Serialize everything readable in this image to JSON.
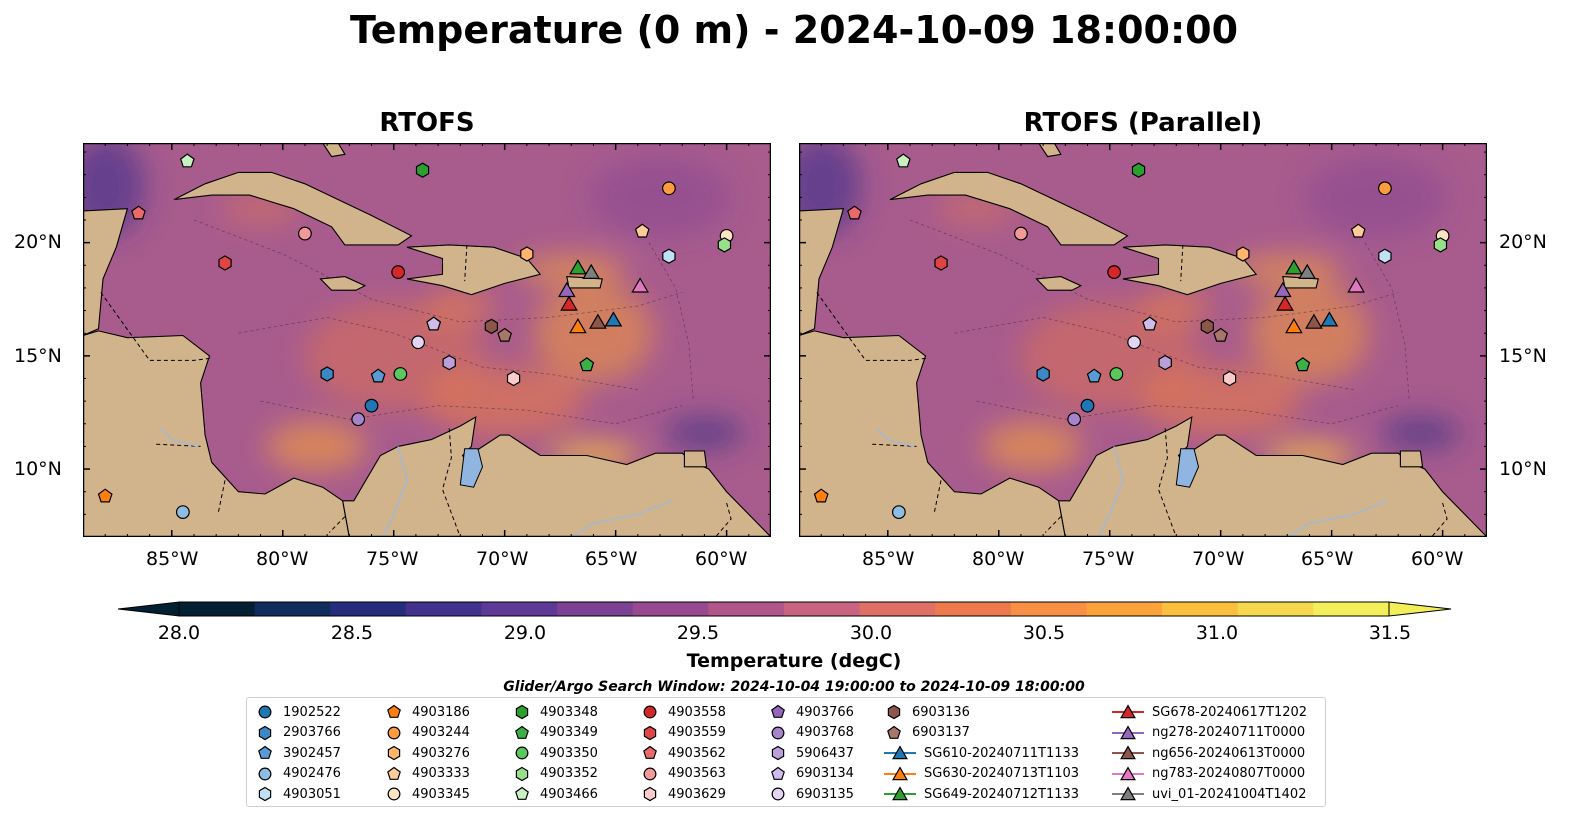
{
  "title": "Temperature (0 m) - 2024-10-09 18:00:00",
  "panels": [
    {
      "title": "RTOFS"
    },
    {
      "title": "RTOFS (Parallel)"
    }
  ],
  "map": {
    "lon_range": [
      -89,
      -58
    ],
    "lat_range": [
      7,
      24.4
    ],
    "lon_ticks": [
      "85°W",
      "80°W",
      "75°W",
      "70°W",
      "65°W",
      "60°W"
    ],
    "lat_ticks": [
      "20°N",
      "15°N",
      "10°N"
    ],
    "land_color": "#d2b48c",
    "lake_color": "#8fb5e0",
    "ocean_color": "#a85c8e"
  },
  "colorbar": {
    "ticks": [
      "28.0",
      "28.5",
      "29.0",
      "29.5",
      "30.0",
      "30.5",
      "31.0",
      "31.5"
    ],
    "label": "Temperature (degC)",
    "colors": [
      "#032033",
      "#0f2d5c",
      "#262e7c",
      "#43328d",
      "#5e3a96",
      "#7b4294",
      "#984a90",
      "#b1568a",
      "#c86482",
      "#de7066",
      "#ee7a4c",
      "#f78f44",
      "#fca33b",
      "#fbbf3e",
      "#f6d84e",
      "#f2ef5a"
    ]
  },
  "search_window": "Glider/Argo Search Window: 2024-10-04 19:00:00 to 2024-10-09 18:00:00",
  "legend": {
    "columns": [
      [
        {
          "label": "1902522",
          "marker": "circle",
          "color": "#1f77b4"
        },
        {
          "label": "2903766",
          "marker": "hexagon",
          "color": "#3b88c4"
        },
        {
          "label": "3902457",
          "marker": "pentagon",
          "color": "#5a9bd5"
        },
        {
          "label": "4902476",
          "marker": "circle",
          "color": "#8dbde3"
        },
        {
          "label": "4903051",
          "marker": "hexagon",
          "color": "#c2e0f5"
        }
      ],
      [
        {
          "label": "4903186",
          "marker": "pentagon",
          "color": "#ff7f0e"
        },
        {
          "label": "4903244",
          "marker": "circle",
          "color": "#ff9b3f"
        },
        {
          "label": "4903276",
          "marker": "hexagon",
          "color": "#ffb56e"
        },
        {
          "label": "4903333",
          "marker": "pentagon",
          "color": "#ffcc99"
        },
        {
          "label": "4903345",
          "marker": "circle",
          "color": "#ffe2c4"
        }
      ],
      [
        {
          "label": "4903348",
          "marker": "hexagon",
          "color": "#2ca02c"
        },
        {
          "label": "4903349",
          "marker": "pentagon",
          "color": "#3cb043"
        },
        {
          "label": "4903350",
          "marker": "circle",
          "color": "#5cc85c"
        },
        {
          "label": "4903352",
          "marker": "hexagon",
          "color": "#98df8a"
        },
        {
          "label": "4903466",
          "marker": "pentagon",
          "color": "#c8f0c0"
        }
      ],
      [
        {
          "label": "4903558",
          "marker": "circle",
          "color": "#d62728"
        },
        {
          "label": "4903559",
          "marker": "hexagon",
          "color": "#e04444"
        },
        {
          "label": "4903562",
          "marker": "pentagon",
          "color": "#e86a6a"
        },
        {
          "label": "4903563",
          "marker": "circle",
          "color": "#f29a9a"
        },
        {
          "label": "4903629",
          "marker": "hexagon",
          "color": "#fbcaca"
        }
      ],
      [
        {
          "label": "4903766",
          "marker": "pentagon",
          "color": "#9467bd"
        },
        {
          "label": "4903768",
          "marker": "circle",
          "color": "#a783cc"
        },
        {
          "label": "5906437",
          "marker": "hexagon",
          "color": "#bb9fdb"
        },
        {
          "label": "6903134",
          "marker": "pentagon",
          "color": "#d0bcea"
        },
        {
          "label": "6903135",
          "marker": "circle",
          "color": "#e3d6f5"
        }
      ],
      [
        {
          "label": "6903136",
          "marker": "hexagon",
          "color": "#8c564b"
        },
        {
          "label": "6903137",
          "marker": "pentagon",
          "color": "#a9766b"
        },
        {
          "label": "SG610-20240711T1133",
          "marker": "triangle-line",
          "color": "#1f77b4"
        },
        {
          "label": "SG630-20240713T1103",
          "marker": "triangle-line",
          "color": "#ff7f0e"
        },
        {
          "label": "SG649-20240712T1133",
          "marker": "triangle-line",
          "color": "#2ca02c"
        }
      ],
      [
        {
          "label": "SG678-20240617T1202",
          "marker": "triangle-line",
          "color": "#d62728"
        },
        {
          "label": "ng278-20240711T0000",
          "marker": "triangle-line",
          "color": "#9467bd"
        },
        {
          "label": "ng656-20240613T0000",
          "marker": "triangle-line",
          "color": "#8c564b"
        },
        {
          "label": "ng783-20240807T0000",
          "marker": "triangle-line",
          "color": "#e377c2"
        },
        {
          "label": "uvi_01-20241004T1402",
          "marker": "triangle-line",
          "color": "#7f7f7f"
        }
      ]
    ]
  },
  "floats": [
    {
      "id": "1902522",
      "lon": -76.0,
      "lat": 12.8
    },
    {
      "id": "2903766",
      "lon": -78.0,
      "lat": 14.2
    },
    {
      "id": "3902457",
      "lon": -75.7,
      "lat": 14.1
    },
    {
      "id": "4902476",
      "lon": -84.5,
      "lat": 8.1
    },
    {
      "id": "4903051",
      "lon": -62.6,
      "lat": 19.4
    },
    {
      "id": "4903186",
      "lon": -88.0,
      "lat": 8.8
    },
    {
      "id": "4903244",
      "lon": -62.6,
      "lat": 22.4
    },
    {
      "id": "4903276",
      "lon": -69.0,
      "lat": 19.5
    },
    {
      "id": "4903333",
      "lon": -63.8,
      "lat": 20.5
    },
    {
      "id": "4903345",
      "lon": -60.0,
      "lat": 20.3
    },
    {
      "id": "4903348",
      "lon": -73.7,
      "lat": 23.2
    },
    {
      "id": "4903349",
      "lon": -66.3,
      "lat": 14.6
    },
    {
      "id": "4903350",
      "lon": -74.7,
      "lat": 14.2
    },
    {
      "id": "4903352",
      "lon": -60.1,
      "lat": 19.9
    },
    {
      "id": "4903466",
      "lon": -84.3,
      "lat": 23.6
    },
    {
      "id": "4903558",
      "lon": -74.8,
      "lat": 18.7
    },
    {
      "id": "4903559",
      "lon": -82.6,
      "lat": 19.1
    },
    {
      "id": "4903562",
      "lon": -86.5,
      "lat": 21.3
    },
    {
      "id": "4903563",
      "lon": -79.0,
      "lat": 20.4
    },
    {
      "id": "4903629",
      "lon": -69.6,
      "lat": 14.0
    },
    {
      "id": "4903766",
      "lon": -73.2,
      "lat": 16.4
    },
    {
      "id": "4903768",
      "lon": -76.6,
      "lat": 12.2
    },
    {
      "id": "5906437",
      "lon": -72.5,
      "lat": 14.7
    },
    {
      "id": "6903134",
      "lon": -73.2,
      "lat": 16.4
    },
    {
      "id": "6903135",
      "lon": -73.9,
      "lat": 15.6
    },
    {
      "id": "6903136",
      "lon": -70.6,
      "lat": 16.3
    },
    {
      "id": "6903137",
      "lon": -70.0,
      "lat": 15.9
    }
  ],
  "gliders": [
    {
      "id": "SG610-20240711T1133",
      "lon": -65.1,
      "lat": 16.6
    },
    {
      "id": "SG630-20240713T1103",
      "lon": -66.7,
      "lat": 16.3
    },
    {
      "id": "SG649-20240712T1133",
      "lon": -66.7,
      "lat": 18.9
    },
    {
      "id": "SG678-20240617T1202",
      "lon": -67.1,
      "lat": 17.3
    },
    {
      "id": "ng278-20240711T0000",
      "lon": -67.2,
      "lat": 17.9
    },
    {
      "id": "ng656-20240613T0000",
      "lon": -65.8,
      "lat": 16.5
    },
    {
      "id": "ng783-20240807T0000",
      "lon": -63.9,
      "lat": 18.1
    },
    {
      "id": "uvi_01-20241004T1402",
      "lon": -66.1,
      "lat": 18.7
    }
  ]
}
